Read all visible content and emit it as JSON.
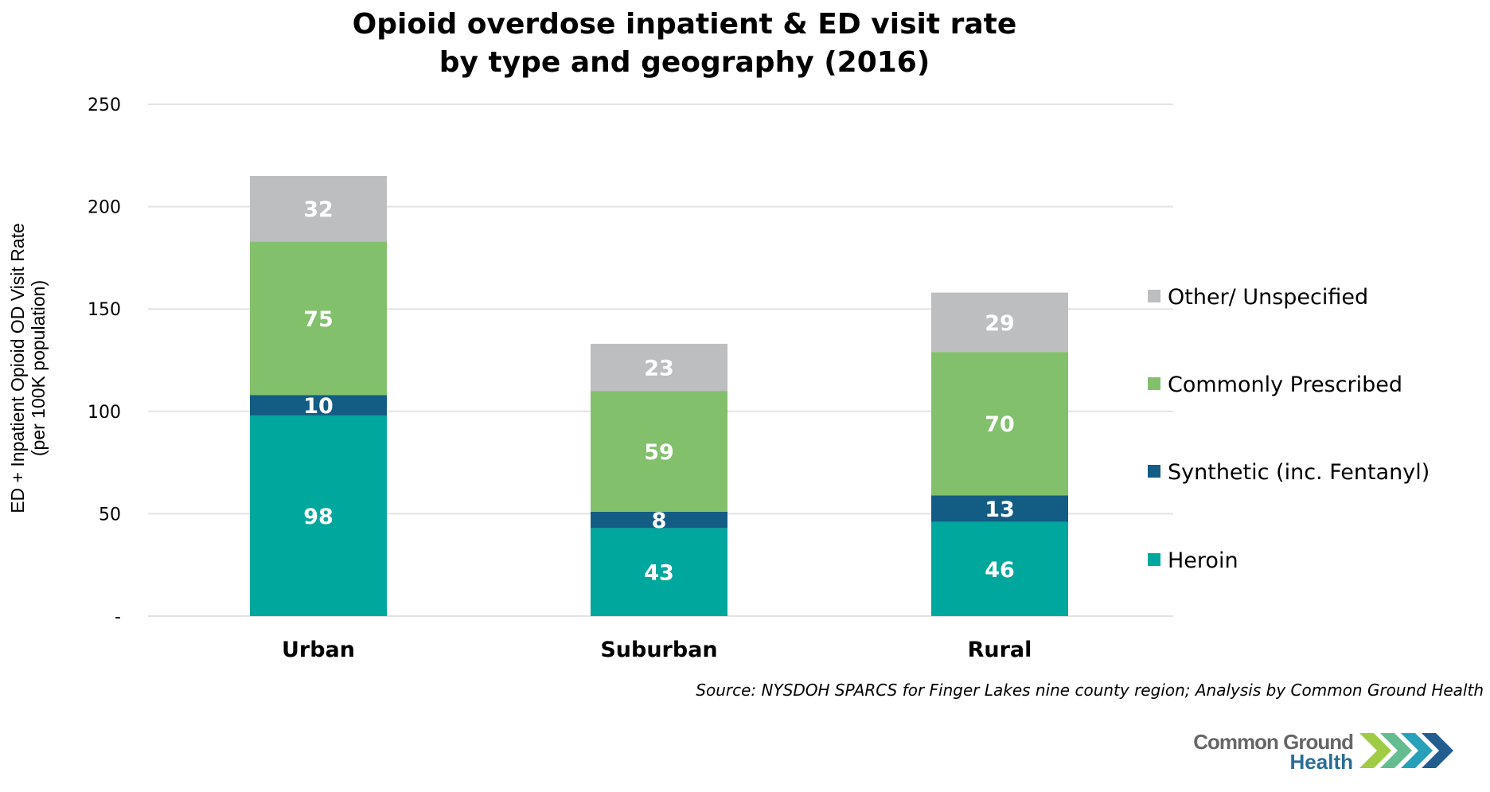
{
  "chart_data": {
    "type": "bar",
    "stacked": true,
    "title": "Opioid overdose inpatient & ED visit rate",
    "subtitle": "by type and geography (2016)",
    "title_lines": [
      "Opioid overdose inpatient & ED visit rate",
      "by type and geography (2016)"
    ],
    "xlabel": "",
    "ylabel_lines": [
      "ED + Inpatient Opioid OD Visit Rate",
      "(per 100K population)"
    ],
    "ylim": [
      0,
      250
    ],
    "yticks": [
      0,
      50,
      100,
      150,
      200,
      250
    ],
    "ytick_labels": [
      "-",
      "50",
      "100",
      "150",
      "200",
      "250"
    ],
    "grid": true,
    "categories": [
      "Urban",
      "Suburban",
      "Rural"
    ],
    "series": [
      {
        "name": "Heroin",
        "color": "#00A79D",
        "values": [
          98,
          43,
          46
        ]
      },
      {
        "name": "Synthetic (inc. Fentanyl)",
        "color": "#135C84",
        "values": [
          10,
          8,
          13
        ]
      },
      {
        "name": "Commonly Prescribed",
        "color": "#82C06C",
        "values": [
          75,
          59,
          70
        ]
      },
      {
        "name": "Other/ Unspecified",
        "color": "#BDBEC0",
        "values": [
          32,
          23,
          29
        ]
      }
    ],
    "data_labels": true,
    "legend_position": "right",
    "legend_order": [
      "Other/ Unspecified",
      "Commonly Prescribed",
      "Synthetic (inc. Fentanyl)",
      "Heroin"
    ]
  },
  "footer": {
    "source": "Source: NYSDOH SPARCS for Finger Lakes nine county region; Analysis by Common Ground Health"
  },
  "logo": {
    "line1": "Common Ground",
    "line2": "Health",
    "chevron_colors": [
      "#9BC93B",
      "#5DB88A",
      "#1A9CB5",
      "#16548A"
    ]
  }
}
